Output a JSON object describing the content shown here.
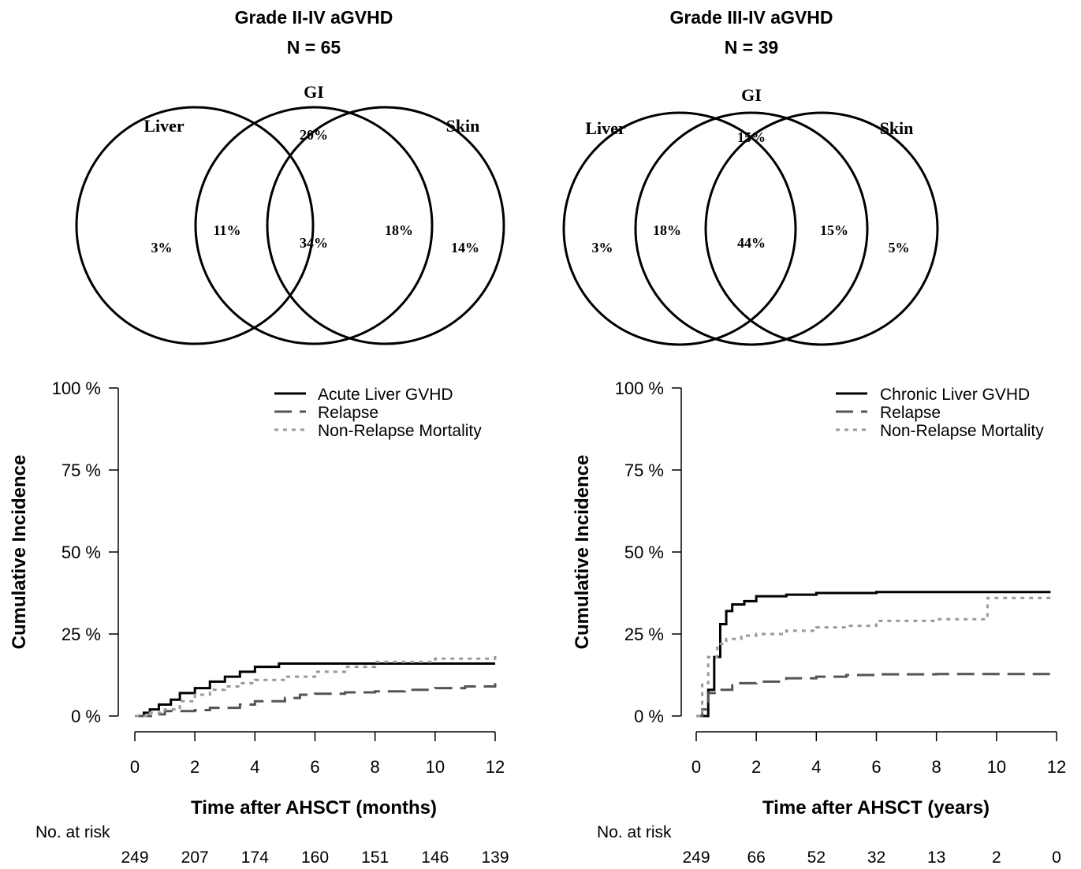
{
  "venn": [
    {
      "title": "Grade II-IV aGVHD",
      "n_label": "N = 65",
      "sets": [
        "Liver",
        "GI",
        "Skin"
      ],
      "regions": {
        "liver_only": "3%",
        "gi_only": "20%",
        "skin_only": "14%",
        "liver_gi": "11%",
        "gi_skin": "18%",
        "all_three": "34%"
      }
    },
    {
      "title": "Grade III-IV aGVHD",
      "n_label": "N = 39",
      "sets": [
        "Liver",
        "GI",
        "Skin"
      ],
      "regions": {
        "liver_only": "3%",
        "gi_only": "15%",
        "skin_only": "5%",
        "liver_gi": "18%",
        "gi_skin": "15%",
        "all_three": "44%"
      }
    }
  ],
  "chart_data": [
    {
      "type": "line",
      "xlabel": "Time after AHSCT (months)",
      "ylabel": "Cumulative Incidence",
      "xlim": [
        0,
        12
      ],
      "ylim": [
        0,
        100
      ],
      "x_ticks": [
        0,
        2,
        4,
        6,
        8,
        10,
        12
      ],
      "y_ticks": [
        "0 %",
        "25 %",
        "50 %",
        "75 %",
        "100 %"
      ],
      "legend_position": "top-right",
      "series": [
        {
          "name": "Acute Liver GVHD",
          "style": "solid",
          "color": "#000000",
          "points": [
            [
              0,
              0
            ],
            [
              0.3,
              1
            ],
            [
              0.5,
              2
            ],
            [
              0.8,
              3.5
            ],
            [
              1.2,
              5
            ],
            [
              1.5,
              7
            ],
            [
              2,
              8.5
            ],
            [
              2.5,
              10.5
            ],
            [
              3,
              12
            ],
            [
              3.5,
              13.5
            ],
            [
              4,
              15
            ],
            [
              4.8,
              16
            ],
            [
              6,
              16
            ],
            [
              8,
              16
            ],
            [
              10,
              16
            ],
            [
              12,
              16
            ]
          ]
        },
        {
          "name": "Relapse",
          "style": "dashed",
          "color": "#555555",
          "points": [
            [
              0,
              0
            ],
            [
              0.6,
              0.5
            ],
            [
              1,
              1.5
            ],
            [
              2,
              1.8
            ],
            [
              2.5,
              2.5
            ],
            [
              3.5,
              3.5
            ],
            [
              4,
              4.5
            ],
            [
              5,
              5.5
            ],
            [
              5.5,
              6.5
            ],
            [
              6,
              6.8
            ],
            [
              7,
              7.2
            ],
            [
              8,
              7.5
            ],
            [
              9,
              8
            ],
            [
              10,
              8.5
            ],
            [
              11,
              9
            ],
            [
              12,
              10
            ]
          ]
        },
        {
          "name": "Non-Relapse Mortality",
          "style": "dotted",
          "color": "#999999",
          "points": [
            [
              0,
              0
            ],
            [
              0.5,
              1
            ],
            [
              1,
              2
            ],
            [
              1.5,
              4.5
            ],
            [
              2,
              6.5
            ],
            [
              2.5,
              8
            ],
            [
              3,
              9
            ],
            [
              3.5,
              10
            ],
            [
              4,
              11
            ],
            [
              5,
              12
            ],
            [
              6,
              13.5
            ],
            [
              7,
              15
            ],
            [
              8,
              16.5
            ],
            [
              10,
              17.5
            ],
            [
              12,
              18.5
            ]
          ]
        }
      ],
      "at_risk_label": "No. at risk",
      "at_risk": [
        "249",
        "207",
        "174",
        "160",
        "151",
        "146",
        "139"
      ]
    },
    {
      "type": "line",
      "xlabel": "Time after AHSCT (years)",
      "ylabel": "Cumulative Incidence",
      "xlim": [
        0,
        12
      ],
      "ylim": [
        0,
        100
      ],
      "x_ticks": [
        0,
        2,
        4,
        6,
        8,
        10,
        12
      ],
      "y_ticks": [
        "0 %",
        "25 %",
        "50 %",
        "75 %",
        "100 %"
      ],
      "legend_position": "top-right",
      "series": [
        {
          "name": "Chronic Liver GVHD",
          "style": "solid",
          "color": "#000000",
          "points": [
            [
              0,
              0
            ],
            [
              0.3,
              0
            ],
            [
              0.4,
              8
            ],
            [
              0.6,
              18
            ],
            [
              0.8,
              28
            ],
            [
              1,
              32
            ],
            [
              1.2,
              34
            ],
            [
              1.6,
              35
            ],
            [
              2,
              36.5
            ],
            [
              3,
              37
            ],
            [
              4,
              37.5
            ],
            [
              6,
              37.8
            ],
            [
              8,
              37.8
            ],
            [
              10,
              37.8
            ],
            [
              11.8,
              37.8
            ]
          ]
        },
        {
          "name": "Relapse",
          "style": "dashed",
          "color": "#555555",
          "points": [
            [
              0,
              0
            ],
            [
              0.2,
              2
            ],
            [
              0.4,
              7
            ],
            [
              0.8,
              8
            ],
            [
              1.2,
              10
            ],
            [
              2,
              10.5
            ],
            [
              3,
              11.5
            ],
            [
              4,
              12
            ],
            [
              5,
              12.5
            ],
            [
              6,
              12.7
            ],
            [
              8,
              12.8
            ],
            [
              10,
              12.8
            ],
            [
              11.8,
              12.8
            ]
          ]
        },
        {
          "name": "Non-Relapse Mortality",
          "style": "dotted",
          "color": "#999999",
          "points": [
            [
              0,
              0
            ],
            [
              0.2,
              10
            ],
            [
              0.4,
              18
            ],
            [
              0.7,
              22
            ],
            [
              1,
              23.5
            ],
            [
              1.5,
              24.5
            ],
            [
              2,
              25
            ],
            [
              3,
              26
            ],
            [
              4,
              27
            ],
            [
              5,
              27.5
            ],
            [
              6,
              29
            ],
            [
              8,
              29.5
            ],
            [
              9.7,
              29.5
            ],
            [
              9.7,
              36
            ],
            [
              11.8,
              36
            ]
          ]
        }
      ],
      "at_risk_label": "No. at risk",
      "at_risk": [
        "249",
        "66",
        "52",
        "32",
        "13",
        "2",
        "0"
      ]
    }
  ]
}
